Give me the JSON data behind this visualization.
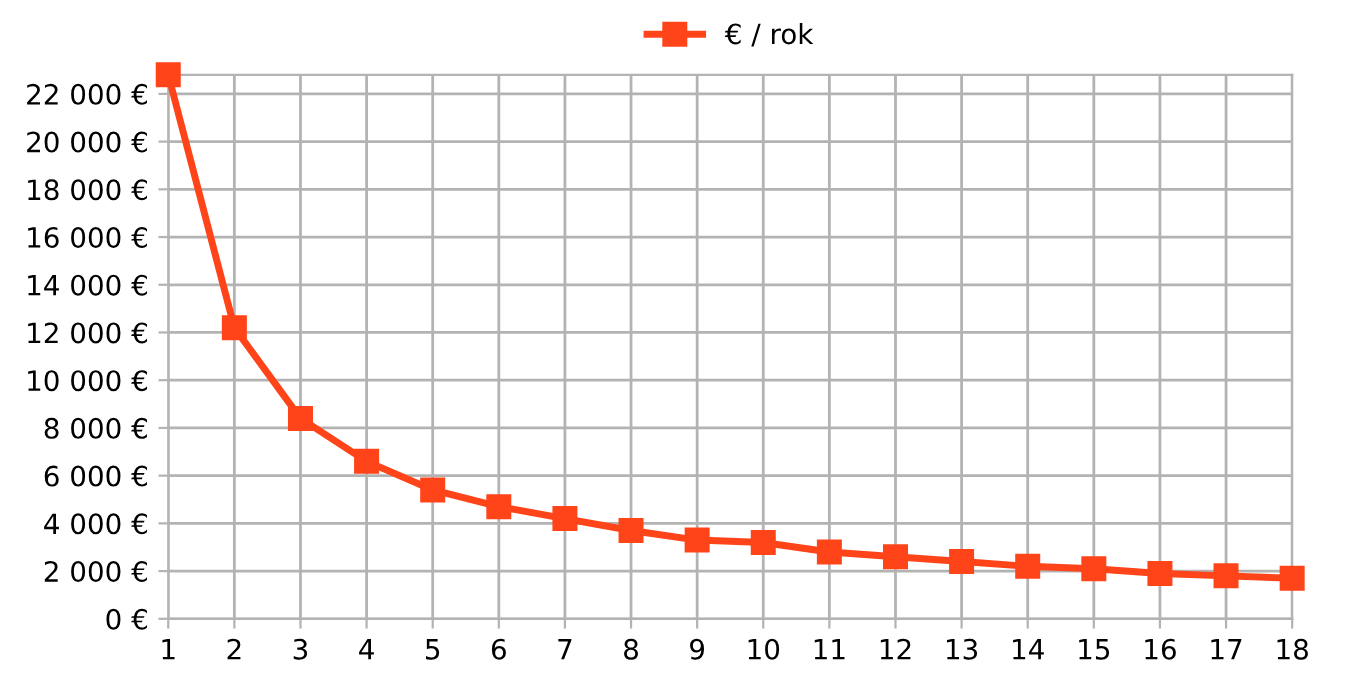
{
  "chart_data": {
    "type": "line",
    "x": [
      1,
      2,
      3,
      4,
      5,
      6,
      7,
      8,
      9,
      10,
      11,
      12,
      13,
      14,
      15,
      16,
      17,
      18
    ],
    "series": [
      {
        "name": "€ / rok",
        "color": "#ff4419",
        "values": [
          22800,
          12200,
          8400,
          6600,
          5400,
          4700,
          4200,
          3700,
          3300,
          3200,
          2800,
          2600,
          2400,
          2200,
          2100,
          1900,
          1800,
          1700
        ]
      }
    ],
    "xlim": [
      1,
      18
    ],
    "xticks": [
      1,
      2,
      3,
      4,
      5,
      6,
      7,
      8,
      9,
      10,
      11,
      12,
      13,
      14,
      15,
      16,
      17,
      18
    ],
    "ylim": [
      0,
      22800
    ],
    "yticks": [
      {
        "value": 0,
        "label": "0 €"
      },
      {
        "value": 2000,
        "label": "2 000 €"
      },
      {
        "value": 4000,
        "label": "4 000 €"
      },
      {
        "value": 6000,
        "label": "6 000 €"
      },
      {
        "value": 8000,
        "label": "8 000 €"
      },
      {
        "value": 10000,
        "label": "10 000 €"
      },
      {
        "value": 12000,
        "label": "12 000 €"
      },
      {
        "value": 14000,
        "label": "14 000 €"
      },
      {
        "value": 16000,
        "label": "16 000 €"
      },
      {
        "value": 18000,
        "label": "18 000 €"
      },
      {
        "value": 20000,
        "label": "20 000 €"
      },
      {
        "value": 22000,
        "label": "22 000 €"
      }
    ],
    "grid": true,
    "legend": "top",
    "marker": "square",
    "line_style": "solid"
  }
}
